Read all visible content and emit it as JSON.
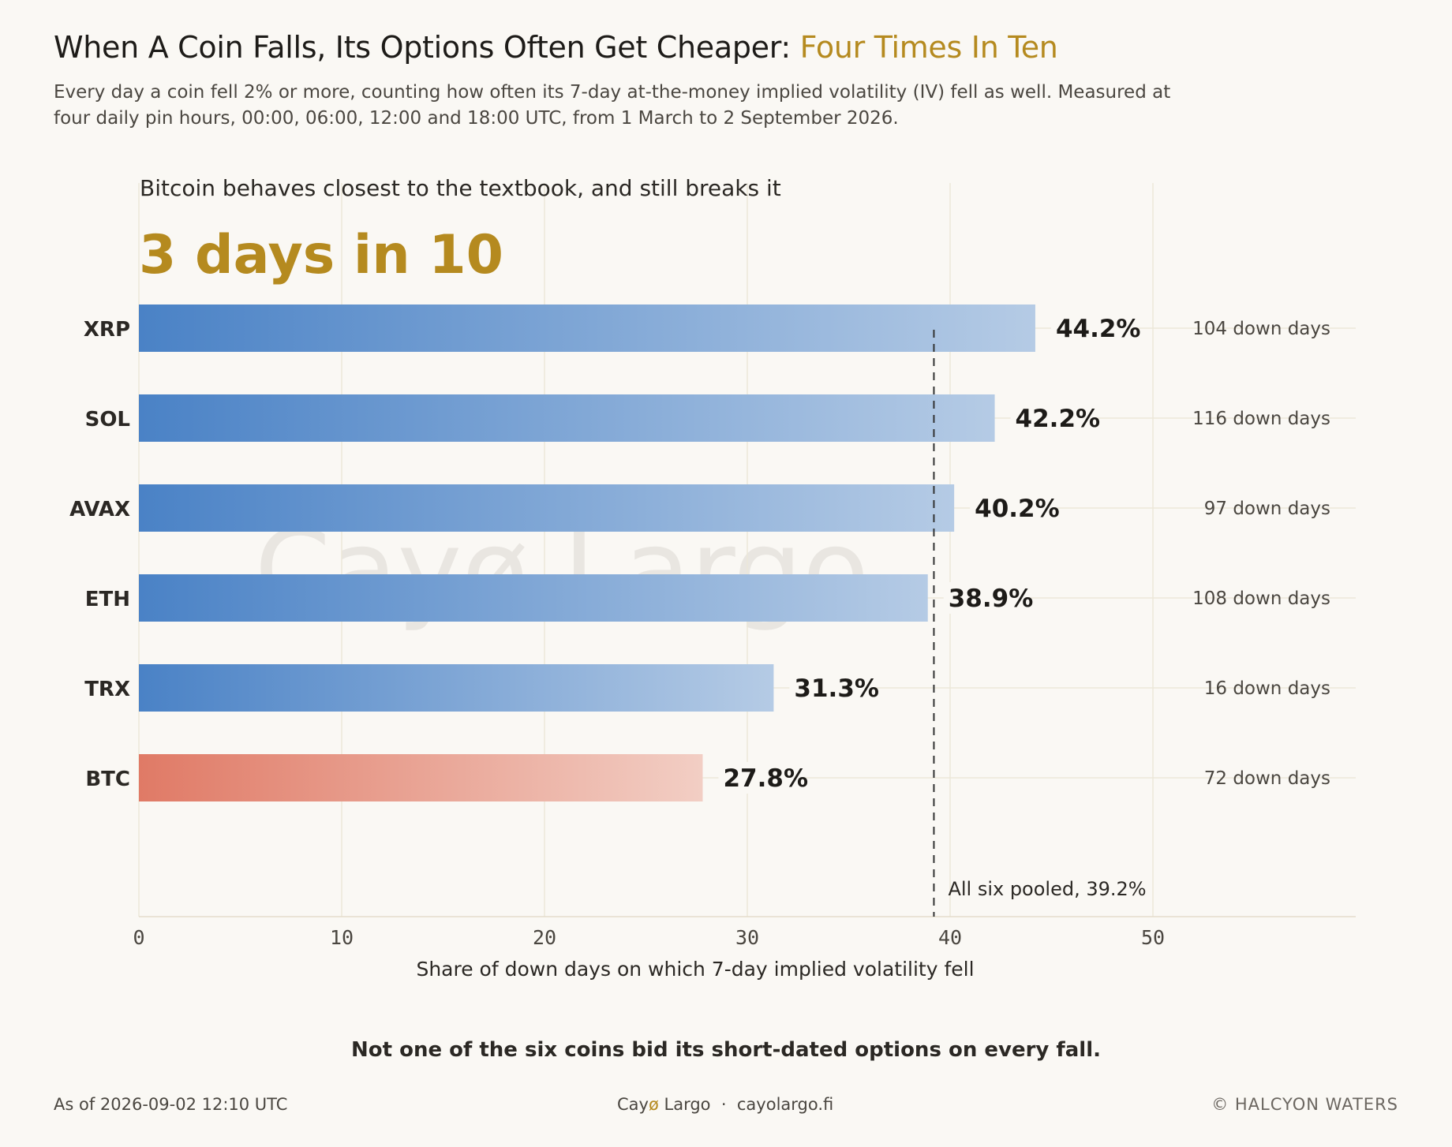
{
  "header": {
    "title_main": "When A Coin Falls, Its Options Often Get Cheaper: ",
    "title_accent": "Four Times In Ten",
    "subtitle": "Every day a coin fell 2% or more, counting how often its 7-day at-the-money implied volatility (IV) fell as well. Measured at four daily pin hours, 00:00, 06:00, 12:00 and 18:00 UTC, from 1 March to 2 September 2026."
  },
  "colors": {
    "accent": "#B58A1F",
    "bar_blue_start": "#4A82C6",
    "bar_blue_end": "#B5CBE5",
    "bar_red_start": "#E07A66",
    "bar_red_end": "#F2CEC4",
    "grid": "#ECE7D9",
    "reference_line": "#333333"
  },
  "chart_data": {
    "type": "bar",
    "orientation": "horizontal",
    "annotation_heading": "Bitcoin behaves closest to the textbook, and still breaks it",
    "annotation_highlight": "3 days in 10",
    "categories": [
      "XRP",
      "SOL",
      "AVAX",
      "ETH",
      "TRX",
      "BTC"
    ],
    "values": [
      44.2,
      42.2,
      40.2,
      38.9,
      31.3,
      27.8
    ],
    "value_labels": [
      "44.2%",
      "42.2%",
      "40.2%",
      "38.9%",
      "31.3%",
      "27.8%"
    ],
    "down_days": [
      104,
      116,
      97,
      108,
      16,
      72
    ],
    "down_day_labels": [
      "104 down days",
      "116 down days",
      "97 down days",
      "108 down days",
      "16 down days",
      "72 down days"
    ],
    "highlight_category": "BTC",
    "reference_line": {
      "value": 39.2,
      "label": "All six pooled, 39.2%"
    },
    "xlabel": "Share of down days on which 7-day implied volatility fell",
    "xlim": [
      0,
      60
    ],
    "xticks": [
      0,
      10,
      20,
      30,
      40,
      50
    ],
    "xtick_labels": [
      "0",
      "10",
      "20",
      "30",
      "40",
      "50"
    ],
    "grid": true,
    "watermark": "Cayø Largo"
  },
  "takeaway": "Not one of the six coins bid its short-dated options on every fall.",
  "footer": {
    "as_of": "As of 2026-09-02 12:10 UTC",
    "brand_pre": "Cay",
    "brand_slash": "ø",
    "brand_post": " Largo  ·  cayolargo.fi",
    "copyright": "© HALCYON WATERS"
  }
}
